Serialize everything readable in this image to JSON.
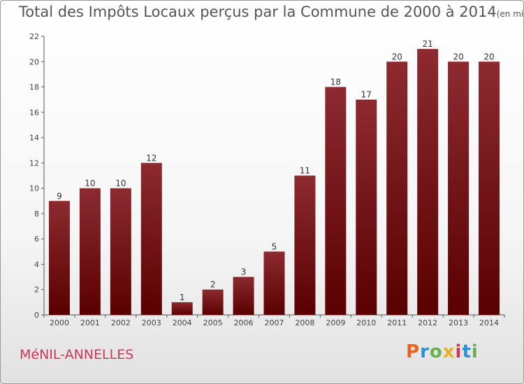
{
  "header": {
    "title": "Total des Impôts Locaux perçus par la Commune de 2000 à 2014",
    "unit": "(en milliers d'€)"
  },
  "footer": {
    "commune": "MéNIL-ANNELLES",
    "logo": "Proxiti",
    "logo_colors": [
      "#e8641e",
      "#2a8fd8",
      "#6ab04c",
      "#e8b21e",
      "#c8385a",
      "#2a8fd8",
      "#6ab04c"
    ]
  },
  "colors": {
    "bar_light": "#8c2a30",
    "bar_dark": "#5a0000",
    "commune": "#c8385a"
  },
  "chart_data": {
    "type": "bar",
    "title": "Total des Impôts Locaux perçus par la Commune de 2000 à 2014",
    "xlabel": "",
    "ylabel": "",
    "categories": [
      "2000",
      "2001",
      "2002",
      "2003",
      "2004",
      "2005",
      "2006",
      "2007",
      "2008",
      "2009",
      "2010",
      "2011",
      "2012",
      "2013",
      "2014"
    ],
    "values": [
      9,
      10,
      10,
      12,
      1,
      2,
      3,
      5,
      11,
      18,
      17,
      20,
      21,
      20,
      20
    ],
    "ylim": [
      0,
      22
    ],
    "yticks": [
      0,
      2,
      4,
      6,
      8,
      10,
      12,
      14,
      16,
      18,
      20,
      22
    ],
    "grid": false,
    "data_labels": true
  }
}
